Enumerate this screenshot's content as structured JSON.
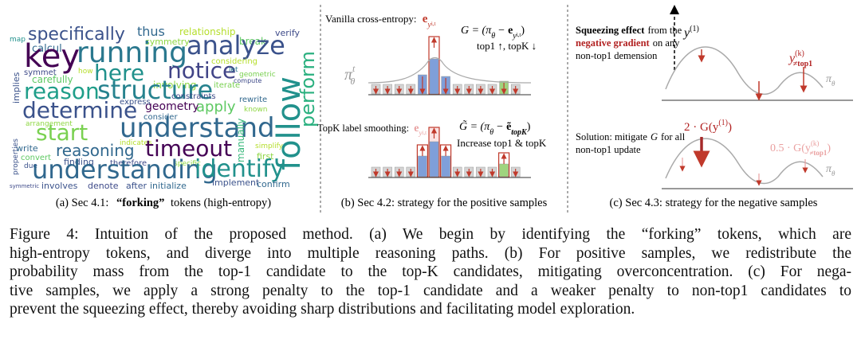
{
  "panel_a": {
    "words": [
      "specifically",
      "thus",
      "relationship",
      "break",
      "verify",
      "map",
      "symmetry",
      "calcul",
      "key",
      "running",
      "analyze",
      "symmet",
      "here",
      "notice",
      "carefully",
      "how",
      "implies",
      "involving",
      "iterate",
      "compute",
      "considering",
      "let",
      "reason",
      "structure",
      "follow",
      "perform",
      "determine",
      "geometry",
      "apply",
      "express",
      "consider",
      "rewrite",
      "known",
      "constraints",
      "arrangement",
      "understand",
      "start",
      "indicates",
      "timeout",
      "reasoning",
      "manually",
      "simplify",
      "first",
      "write",
      "convert",
      "due",
      "finding",
      "therefore",
      "specific",
      "understanding",
      "identify",
      "involves",
      "denote",
      "after",
      "initialize",
      "implement",
      "confirm",
      "symmetric",
      "geometric",
      "properties"
    ],
    "caption": {
      "label": "(a) Sec 4.1:",
      "emphasis": "“forking”",
      "rest": "tokens (high-entropy)"
    }
  },
  "panel_b": {
    "vanilla": {
      "label": "Vanilla cross-entropy:",
      "e": "e",
      "sub": "y",
      "subsub": "i,t"
    },
    "formula_top": {
      "lhs": "G = (π",
      "theta": "θ",
      "op": "−",
      "e": "e",
      "sub": "y",
      "subsub": "i,t",
      "close": ")"
    },
    "top_note": "top1 ↑, topK ↓",
    "policy": {
      "symbol": "π",
      "sup": "t",
      "sub": "θ"
    },
    "smoothing": {
      "label": "TopK label smoothing:",
      "e": "e",
      "sub": "y",
      "subsub": "i,t"
    },
    "formula_bottom": {
      "lhs": "G̃ = (π",
      "theta": "θ",
      "op": "−",
      "e": "ẽ",
      "sub": "topK",
      "close": ")"
    },
    "bottom_note": "Increase top1 & topK",
    "caption": "(b) Sec 4.2: strategy for the positive samples"
  },
  "panel_c": {
    "effect": {
      "bold": "Squeezing effect",
      "after_bold": "from the",
      "red": "negative gradient",
      "after_red": "on any",
      "line3": "non-top1 demension"
    },
    "target": {
      "symbol": "y",
      "sup": "(1)"
    },
    "other": {
      "symbol": "y",
      "sup": "(k)",
      "sub": "≠top1"
    },
    "policy_top": {
      "symbol": "π",
      "sub": "θ"
    },
    "solution": {
      "start": "Solution: mitigate",
      "G": "G",
      "end": "for all",
      "line2": "non-top1 update"
    },
    "strong": {
      "pre": "2 · G(y",
      "sup": "(1)",
      "close": ")"
    },
    "weak": {
      "pre": "0.5 · G(y",
      "sup": "(k)",
      "sub": "≠top1",
      "close": ")"
    },
    "policy_bottom": {
      "symbol": "π",
      "sub": "θ"
    },
    "caption": "(c) Sec 4.3: strategy for the negative samples"
  },
  "figure_caption": {
    "lines": [
      "Figure 4:  Intuition of the proposed method.  (a) We begin by identifying the “forking” tokens, which are",
      "high-entropy tokens, and diverge into multiple reasoning paths. (b) For positive samples, we redistribute the",
      "probability mass from the top-1 candidate to the top-K candidates, mitigating overconcentration. (c) For nega-",
      "tive samples, we apply a strong penalty to the top-1 candidate and a weaker penalty to non-top1 candidates to",
      "prevent the squeezing effect, thereby avoiding sharp distributions and facilitating model exploration."
    ]
  }
}
